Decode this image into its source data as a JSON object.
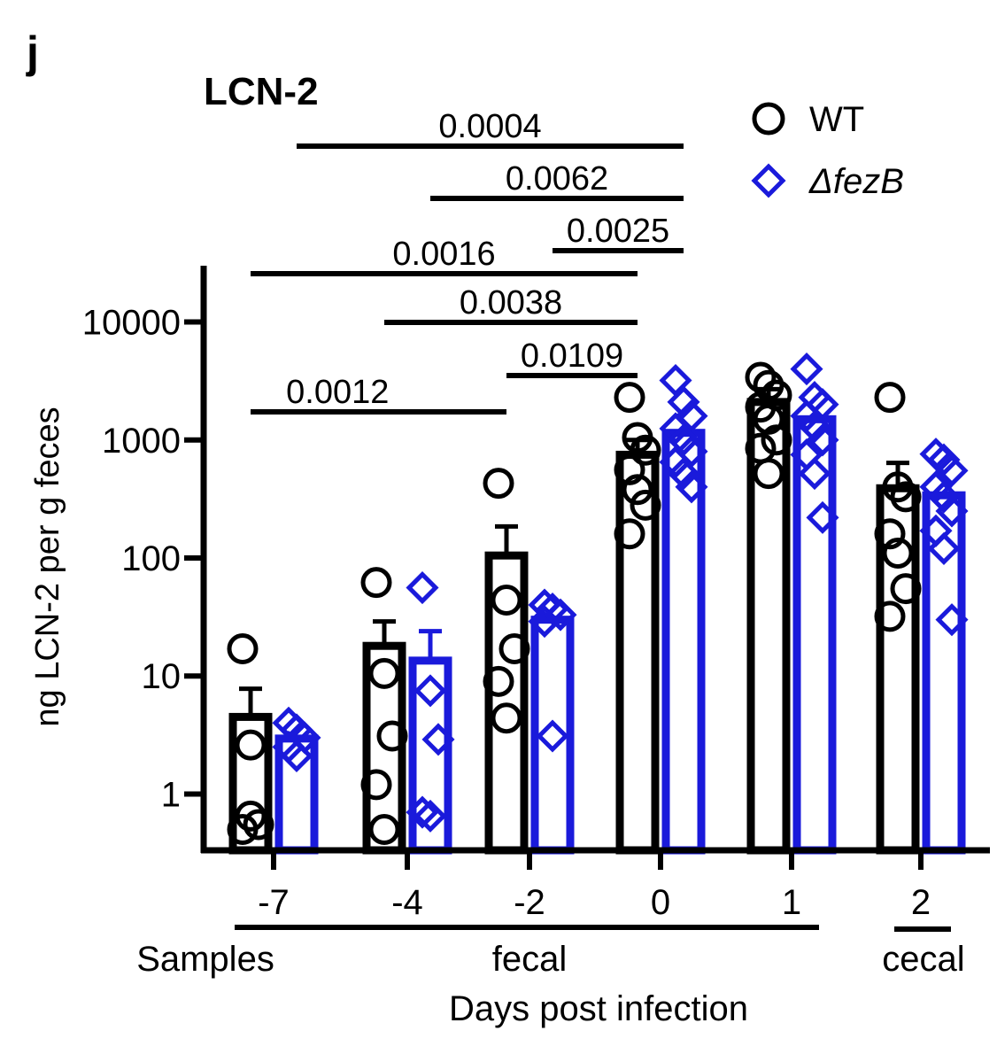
{
  "panel_label": "j",
  "colors": {
    "wt": "#000000",
    "mutant": "#1a1adb"
  },
  "chart_data": {
    "type": "bar",
    "title": "LCN-2",
    "xlabel": "Days post infection",
    "ylabel": "ng LCN-2 per g feces",
    "yscale": "log",
    "ylim": [
      0.3,
      30000
    ],
    "yticks": [
      {
        "value": 1,
        "label": "1"
      },
      {
        "value": 10,
        "label": "10"
      },
      {
        "value": 100,
        "label": "100"
      },
      {
        "value": 1000,
        "label": "1000"
      },
      {
        "value": 10000,
        "label": "10000"
      }
    ],
    "categories": [
      "-7",
      "-4",
      "-2",
      "0",
      "1",
      "2"
    ],
    "legend": {
      "placement": "top-right",
      "items": [
        {
          "label": "WT",
          "marker": "circle",
          "italic": false
        },
        {
          "label": "ΔfezB",
          "marker": "diamond",
          "italic": true
        }
      ]
    },
    "series": [
      {
        "name": "WT",
        "marker": "circle",
        "means": [
          4.5,
          18,
          105,
          750,
          2100,
          390
        ],
        "sem_upper": [
          7.8,
          29,
          185,
          1000,
          2700,
          640
        ],
        "points": [
          [
            17,
            2.6,
            0.55,
            0.5,
            0.65
          ],
          [
            62,
            10.5,
            3.1,
            1.2,
            0.5
          ],
          [
            430,
            44,
            17,
            9,
            4.4
          ],
          [
            2300,
            1050,
            820,
            560,
            380,
            280,
            160
          ],
          [
            3400,
            2900,
            2400,
            1900,
            1500,
            1000,
            850,
            520
          ],
          [
            2300,
            400,
            330,
            160,
            110,
            55,
            32
          ]
        ]
      },
      {
        "name": "ΔfezB",
        "marker": "diamond",
        "means": [
          2.95,
          13.5,
          30,
          1150,
          1500,
          340
        ],
        "sem_upper": [
          null,
          24,
          null,
          null,
          null,
          null
        ],
        "points": [
          [
            4.0,
            3.5,
            3.0,
            2.5,
            2.1
          ],
          [
            56,
            7.5,
            2.9,
            0.7,
            0.65
          ],
          [
            40,
            37,
            33,
            29,
            3.1
          ],
          [
            3200,
            2100,
            1600,
            1250,
            1000,
            800,
            650,
            520,
            400
          ],
          [
            4000,
            2300,
            2000,
            1600,
            1300,
            1000,
            750,
            520,
            220
          ],
          [
            760,
            680,
            550,
            400,
            330,
            250,
            170,
            120,
            30
          ]
        ]
      }
    ],
    "annotations": [
      {
        "label": "0.0004",
        "from": "-7 ΔfezB",
        "to": "0 ΔfezB",
        "tier": 1
      },
      {
        "label": "0.0062",
        "from": "-4 ΔfezB",
        "to": "0 ΔfezB",
        "tier": 2
      },
      {
        "label": "0.0025",
        "from": "-2 ΔfezB",
        "to": "0 ΔfezB",
        "tier": 3
      },
      {
        "label": "0.0016",
        "from": "-7 WT",
        "to": "0 WT",
        "tier": 4
      },
      {
        "label": "0.0038",
        "from": "-4 WT",
        "to": "0 WT",
        "tier": 5
      },
      {
        "label": "0.0109",
        "from": "-2 WT",
        "to": "0 WT",
        "tier": 6
      },
      {
        "label": "0.0012",
        "from": "-7 WT",
        "to": "-2 WT",
        "tier": 7
      }
    ],
    "sample_groups": [
      {
        "label": "Samples",
        "role": "row-label"
      },
      {
        "label": "fecal",
        "categories": [
          "-7",
          "-4",
          "-2",
          "0",
          "1"
        ]
      },
      {
        "label": "cecal",
        "categories": [
          "2"
        ]
      }
    ]
  }
}
